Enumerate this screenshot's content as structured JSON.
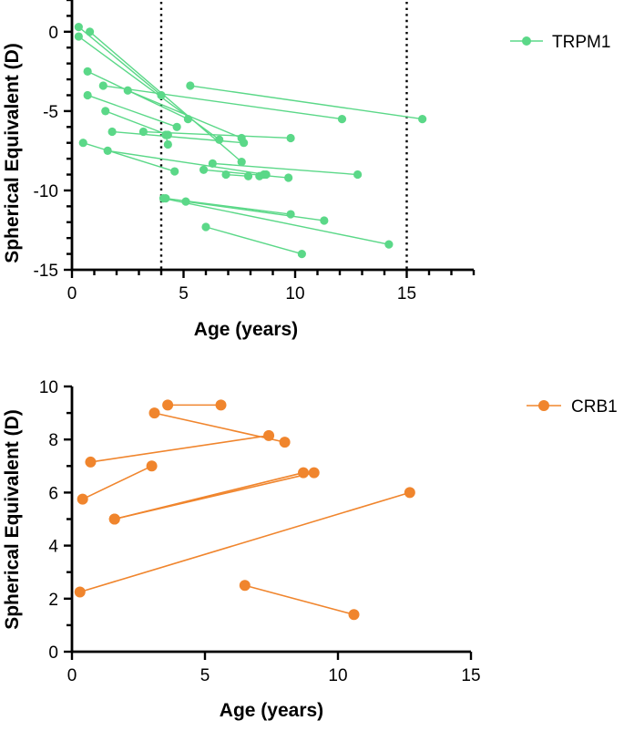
{
  "chart_data": [
    {
      "type": "line",
      "subtype": "paired-connected-scatter",
      "xlabel": "Age (years)",
      "ylabel": "Spherical Equivalent (D)",
      "xlim": [
        0,
        18
      ],
      "ylim": [
        -15,
        2
      ],
      "xticks": [
        0,
        5,
        10,
        15
      ],
      "yticks": [
        0,
        -5,
        -10,
        -15
      ],
      "xtick_labels": [
        "0",
        "5",
        "10",
        "15"
      ],
      "ytick_labels": [
        "0",
        "-5",
        "-10",
        "-15"
      ],
      "reference_lines_x": [
        4,
        15
      ],
      "reference_line_style": "dotted",
      "grid": false,
      "legend_position": "right, beside plot",
      "series": [
        {
          "name": "TRPM1",
          "color": "#5BD888",
          "pairs": [
            [
              [
                0.3,
                0.3
              ],
              [
                4.0,
                -4.0
              ]
            ],
            [
              [
                0.3,
                -0.3
              ],
              [
                6.6,
                -6.8
              ]
            ],
            [
              [
                0.8,
                0.0
              ],
              [
                7.6,
                -8.2
              ]
            ],
            [
              [
                0.7,
                -2.5
              ],
              [
                5.2,
                -5.5
              ]
            ],
            [
              [
                1.4,
                -3.4
              ],
              [
                12.1,
                -5.5
              ]
            ],
            [
              [
                2.5,
                -3.7
              ],
              [
                7.6,
                -6.7
              ]
            ],
            [
              [
                5.3,
                -3.4
              ],
              [
                15.7,
                -5.5
              ]
            ],
            [
              [
                0.7,
                -4.0
              ],
              [
                4.7,
                -6.0
              ]
            ],
            [
              [
                1.5,
                -5.0
              ],
              [
                4.3,
                -6.5
              ]
            ],
            [
              [
                3.2,
                -6.3
              ],
              [
                9.8,
                -6.7
              ]
            ],
            [
              [
                1.8,
                -6.3
              ],
              [
                7.7,
                -7.0
              ]
            ],
            [
              [
                4.3,
                -7.1
              ],
              [
                4.2,
                -6.5
              ]
            ],
            [
              [
                0.5,
                -7.0
              ],
              [
                4.6,
                -8.8
              ]
            ],
            [
              [
                1.6,
                -7.5
              ],
              [
                8.7,
                -9.0
              ]
            ],
            [
              [
                6.3,
                -8.3
              ],
              [
                12.8,
                -9.0
              ]
            ],
            [
              [
                5.9,
                -8.7
              ],
              [
                9.7,
                -9.2
              ]
            ],
            [
              [
                6.9,
                -9.0
              ],
              [
                7.9,
                -9.1
              ]
            ],
            [
              [
                8.4,
                -9.1
              ],
              [
                8.6,
                -9.0
              ]
            ],
            [
              [
                4.2,
                -10.5
              ],
              [
                9.8,
                -11.5
              ]
            ],
            [
              [
                5.1,
                -10.7
              ],
              [
                11.3,
                -11.9
              ]
            ],
            [
              [
                4.1,
                -10.5
              ],
              [
                14.2,
                -13.4
              ]
            ],
            [
              [
                6.0,
                -12.3
              ],
              [
                10.3,
                -14.0
              ]
            ]
          ]
        }
      ]
    },
    {
      "type": "line",
      "subtype": "paired-connected-scatter",
      "xlabel": "Age (years)",
      "ylabel": "Spherical Equivalent (D)",
      "xlim": [
        0,
        15
      ],
      "ylim": [
        0,
        10
      ],
      "xticks": [
        0,
        5,
        10,
        15
      ],
      "yticks": [
        0,
        2,
        4,
        6,
        8,
        10
      ],
      "xtick_labels": [
        "0",
        "5",
        "10",
        "15"
      ],
      "ytick_labels": [
        "0",
        "2",
        "4",
        "6",
        "8",
        "10"
      ],
      "grid": false,
      "legend_position": "right, beside plot",
      "series": [
        {
          "name": "CRB1",
          "color": "#F0852D",
          "pairs": [
            [
              [
                3.6,
                9.3
              ],
              [
                5.6,
                9.3
              ]
            ],
            [
              [
                3.1,
                9.0
              ],
              [
                8.0,
                7.9
              ]
            ],
            [
              [
                0.7,
                7.15
              ],
              [
                7.4,
                8.15
              ]
            ],
            [
              [
                0.4,
                5.75
              ],
              [
                3.0,
                7.0
              ]
            ],
            [
              [
                1.6,
                5.0
              ],
              [
                8.7,
                6.75
              ]
            ],
            [
              [
                1.6,
                5.0
              ],
              [
                9.1,
                6.75
              ]
            ],
            [
              [
                0.3,
                2.25
              ],
              [
                12.7,
                6.0
              ]
            ],
            [
              [
                6.5,
                2.5
              ],
              [
                10.6,
                1.4
              ]
            ]
          ]
        }
      ]
    }
  ]
}
